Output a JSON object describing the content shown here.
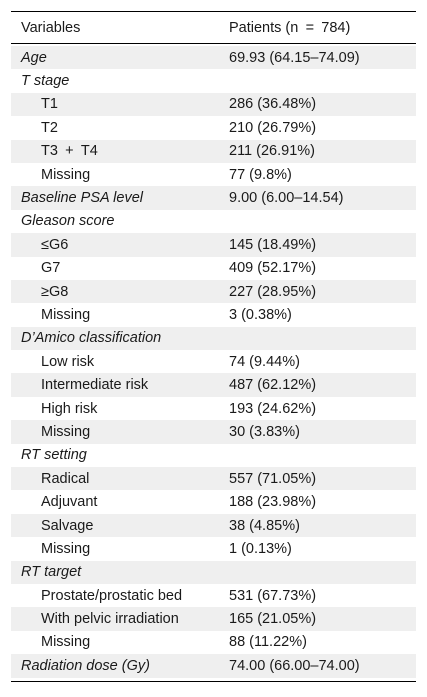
{
  "header": {
    "variables": "Variables",
    "patients": "Patients (n = 784)"
  },
  "rows": [
    {
      "label": "Age",
      "value": "69.93 (64.15–74.09)",
      "kind": "cat"
    },
    {
      "label": "T stage",
      "value": "",
      "kind": "cat"
    },
    {
      "label": "T1",
      "value": "286 (36.48%)",
      "kind": "sub"
    },
    {
      "label": "T2",
      "value": "210 (26.79%)",
      "kind": "sub"
    },
    {
      "label": "T3 + T4",
      "value": "211 (26.91%)",
      "kind": "sub"
    },
    {
      "label": "Missing",
      "value": "77 (9.8%)",
      "kind": "sub"
    },
    {
      "label": "Baseline PSA level",
      "value": "9.00 (6.00–14.54)",
      "kind": "cat"
    },
    {
      "label": "Gleason score",
      "value": "",
      "kind": "cat"
    },
    {
      "label": "≤G6",
      "value": "145 (18.49%)",
      "kind": "sub"
    },
    {
      "label": "G7",
      "value": "409 (52.17%)",
      "kind": "sub"
    },
    {
      "label": "≥G8",
      "value": "227 (28.95%)",
      "kind": "sub"
    },
    {
      "label": "Missing",
      "value": "3 (0.38%)",
      "kind": "sub"
    },
    {
      "label": "D’Amico classification",
      "value": "",
      "kind": "cat"
    },
    {
      "label": "Low risk",
      "value": "74 (9.44%)",
      "kind": "sub"
    },
    {
      "label": "Intermediate risk",
      "value": "487 (62.12%)",
      "kind": "sub"
    },
    {
      "label": "High risk",
      "value": "193 (24.62%)",
      "kind": "sub"
    },
    {
      "label": "Missing",
      "value": "30 (3.83%)",
      "kind": "sub"
    },
    {
      "label": "RT setting",
      "value": "",
      "kind": "cat"
    },
    {
      "label": "Radical",
      "value": "557 (71.05%)",
      "kind": "sub"
    },
    {
      "label": "Adjuvant",
      "value": "188 (23.98%)",
      "kind": "sub"
    },
    {
      "label": "Salvage",
      "value": "38 (4.85%)",
      "kind": "sub"
    },
    {
      "label": "Missing",
      "value": "1 (0.13%)",
      "kind": "sub"
    },
    {
      "label": "RT target",
      "value": "",
      "kind": "cat"
    },
    {
      "label": "Prostate/prostatic bed",
      "value": "531 (67.73%)",
      "kind": "sub"
    },
    {
      "label": "With pelvic irradiation",
      "value": "165 (21.05%)",
      "kind": "sub"
    },
    {
      "label": "Missing",
      "value": "88 (11.22%)",
      "kind": "sub"
    },
    {
      "label": "Radiation dose (Gy)",
      "value": "74.00 (66.00–74.00)",
      "kind": "cat"
    }
  ]
}
